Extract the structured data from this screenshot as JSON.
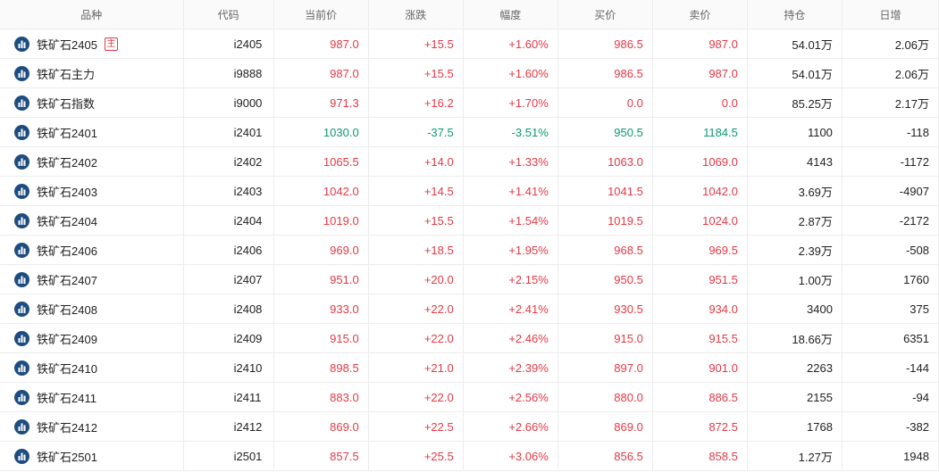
{
  "colors": {
    "up": "#e53945",
    "down": "#0b9b6e",
    "icon": "#1d4d80"
  },
  "headers": [
    "品种",
    "代码",
    "当前价",
    "涨跌",
    "幅度",
    "买价",
    "卖价",
    "持仓",
    "日增"
  ],
  "rows": [
    {
      "name": "铁矿石2405",
      "badge": "主",
      "code": "i2405",
      "price": "987.0",
      "change": "+15.5",
      "pct": "+1.60%",
      "bid": "986.5",
      "ask": "987.0",
      "oi": "54.01万",
      "daily": "2.06万",
      "dir": "up"
    },
    {
      "name": "铁矿石主力",
      "code": "i9888",
      "price": "987.0",
      "change": "+15.5",
      "pct": "+1.60%",
      "bid": "986.5",
      "ask": "987.0",
      "oi": "54.01万",
      "daily": "2.06万",
      "dir": "up"
    },
    {
      "name": "铁矿石指数",
      "code": "i9000",
      "price": "971.3",
      "change": "+16.2",
      "pct": "+1.70%",
      "bid": "0.0",
      "ask": "0.0",
      "oi": "85.25万",
      "daily": "2.17万",
      "dir": "up"
    },
    {
      "name": "铁矿石2401",
      "code": "i2401",
      "price": "1030.0",
      "change": "-37.5",
      "pct": "-3.51%",
      "bid": "950.5",
      "ask": "1184.5",
      "oi": "1100",
      "daily": "-118",
      "dir": "down"
    },
    {
      "name": "铁矿石2402",
      "code": "i2402",
      "price": "1065.5",
      "change": "+14.0",
      "pct": "+1.33%",
      "bid": "1063.0",
      "ask": "1069.0",
      "oi": "4143",
      "daily": "-1172",
      "dir": "up"
    },
    {
      "name": "铁矿石2403",
      "code": "i2403",
      "price": "1042.0",
      "change": "+14.5",
      "pct": "+1.41%",
      "bid": "1041.5",
      "ask": "1042.0",
      "oi": "3.69万",
      "daily": "-4907",
      "dir": "up"
    },
    {
      "name": "铁矿石2404",
      "code": "i2404",
      "price": "1019.0",
      "change": "+15.5",
      "pct": "+1.54%",
      "bid": "1019.5",
      "ask": "1024.0",
      "oi": "2.87万",
      "daily": "-2172",
      "dir": "up"
    },
    {
      "name": "铁矿石2406",
      "code": "i2406",
      "price": "969.0",
      "change": "+18.5",
      "pct": "+1.95%",
      "bid": "968.5",
      "ask": "969.5",
      "oi": "2.39万",
      "daily": "-508",
      "dir": "up"
    },
    {
      "name": "铁矿石2407",
      "code": "i2407",
      "price": "951.0",
      "change": "+20.0",
      "pct": "+2.15%",
      "bid": "950.5",
      "ask": "951.5",
      "oi": "1.00万",
      "daily": "1760",
      "dir": "up"
    },
    {
      "name": "铁矿石2408",
      "code": "i2408",
      "price": "933.0",
      "change": "+22.0",
      "pct": "+2.41%",
      "bid": "930.5",
      "ask": "934.0",
      "oi": "3400",
      "daily": "375",
      "dir": "up"
    },
    {
      "name": "铁矿石2409",
      "code": "i2409",
      "price": "915.0",
      "change": "+22.0",
      "pct": "+2.46%",
      "bid": "915.0",
      "ask": "915.5",
      "oi": "18.66万",
      "daily": "6351",
      "dir": "up"
    },
    {
      "name": "铁矿石2410",
      "code": "i2410",
      "price": "898.5",
      "change": "+21.0",
      "pct": "+2.39%",
      "bid": "897.0",
      "ask": "901.0",
      "oi": "2263",
      "daily": "-144",
      "dir": "up"
    },
    {
      "name": "铁矿石2411",
      "code": "i2411",
      "price": "883.0",
      "change": "+22.0",
      "pct": "+2.56%",
      "bid": "880.0",
      "ask": "886.5",
      "oi": "2155",
      "daily": "-94",
      "dir": "up"
    },
    {
      "name": "铁矿石2412",
      "code": "i2412",
      "price": "869.0",
      "change": "+22.5",
      "pct": "+2.66%",
      "bid": "869.0",
      "ask": "872.5",
      "oi": "1768",
      "daily": "-382",
      "dir": "up"
    },
    {
      "name": "铁矿石2501",
      "code": "i2501",
      "price": "857.5",
      "change": "+25.5",
      "pct": "+3.06%",
      "bid": "856.5",
      "ask": "858.5",
      "oi": "1.27万",
      "daily": "1948",
      "dir": "up"
    }
  ]
}
